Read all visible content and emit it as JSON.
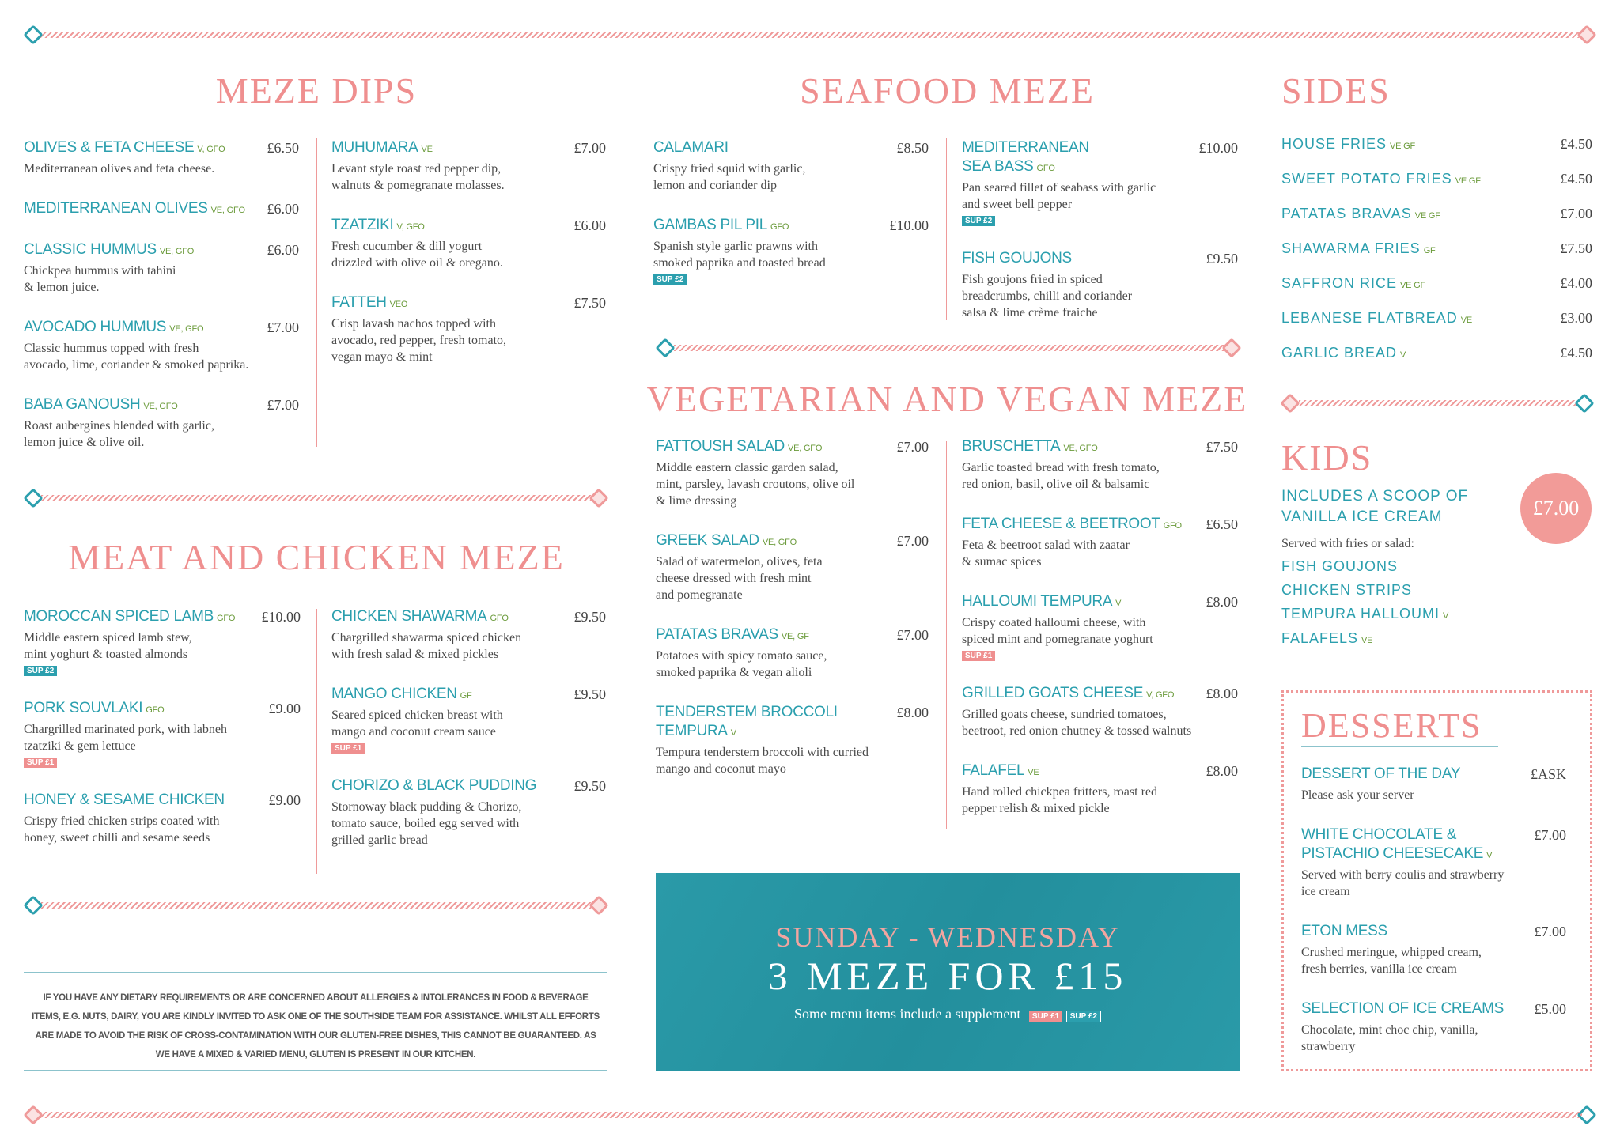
{
  "colors": {
    "teal": "#2b9fae",
    "pink": "#ef8f8f",
    "tag_green": "#6a9a3a",
    "promo_bg": "#2a9aa8"
  },
  "meze_dips": {
    "title": "MEZE DIPS",
    "left": [
      {
        "name": "OLIVES & FETA CHEESE",
        "tags": "V, GFO",
        "price": "£6.50",
        "desc": "Mediterranean olives and feta cheese."
      },
      {
        "name": "MEDITERRANEAN OLIVES",
        "tags": "VE, GFO",
        "price": "£6.00",
        "desc": ""
      },
      {
        "name": "CLASSIC HUMMUS",
        "tags": "VE, GFO",
        "price": "£6.00",
        "desc": "Chickpea hummus with tahini\n& lemon juice."
      },
      {
        "name": "AVOCADO HUMMUS",
        "tags": "VE, GFO",
        "price": "£7.00",
        "desc": "Classic hummus topped with fresh\navocado, lime, coriander & smoked paprika."
      },
      {
        "name": "BABA GANOUSH",
        "tags": "VE, GFO",
        "price": "£7.00",
        "desc": "Roast aubergines blended with garlic,\nlemon juice & olive oil."
      }
    ],
    "right": [
      {
        "name": "MUHUMARA",
        "tags": "VE",
        "price": "£7.00",
        "desc": "Levant style roast red pepper dip,\nwalnuts & pomegranate molasses."
      },
      {
        "name": "TZATZIKI",
        "tags": "V, GFO",
        "price": "£6.00",
        "desc": "Fresh cucumber & dill yogurt\ndrizzled with olive oil & oregano."
      },
      {
        "name": "FATTEH",
        "tags": "VEO",
        "price": "£7.50",
        "desc": "Crisp lavash nachos topped with\navocado, red pepper, fresh tomato,\nvegan mayo & mint"
      }
    ]
  },
  "meat": {
    "title": "MEAT AND CHICKEN MEZE",
    "left": [
      {
        "name": "MOROCCAN SPICED LAMB",
        "tags": "GFO",
        "price": "£10.00",
        "desc": "Middle eastern spiced lamb stew,\nmint yoghurt & toasted almonds",
        "sup": "SUP £2"
      },
      {
        "name": "PORK SOUVLAKI",
        "tags": "GFO",
        "price": "£9.00",
        "desc": "Chargrilled marinated pork, with labneh\ntzatziki & gem lettuce",
        "sup": "SUP £1"
      },
      {
        "name": "HONEY & SESAME CHICKEN",
        "tags": "",
        "price": "£9.00",
        "desc": "Crispy fried chicken strips coated with\nhoney, sweet chilli and sesame seeds"
      }
    ],
    "right": [
      {
        "name": "CHICKEN SHAWARMA",
        "tags": "GFO",
        "price": "£9.50",
        "desc": "Chargrilled shawarma spiced chicken\nwith fresh salad & mixed pickles"
      },
      {
        "name": "MANGO CHICKEN",
        "tags": "GF",
        "price": "£9.50",
        "desc": "Seared spiced chicken breast with\nmango and coconut cream sauce",
        "sup": "SUP £1"
      },
      {
        "name": "CHORIZO & BLACK PUDDING",
        "tags": "",
        "price": "£9.50",
        "desc": "Stornoway black pudding & Chorizo,\ntomato sauce, boiled egg served with\ngrilled garlic bread"
      }
    ]
  },
  "allergen_note": "IF YOU HAVE ANY DIETARY REQUIREMENTS OR ARE CONCERNED ABOUT ALLERGIES & INTOLERANCES IN FOOD & BEVERAGE ITEMS, E.G. NUTS, DAIRY, YOU ARE KINDLY INVITED TO ASK ONE OF THE SOUTHSIDE TEAM FOR ASSISTANCE. WHILST ALL EFFORTS ARE MADE TO AVOID THE RISK OF CROSS-CONTAMINATION WITH OUR GLUTEN-FREE DISHES, THIS CANNOT BE GUARANTEED. AS WE HAVE A MIXED & VARIED MENU, GLUTEN IS PRESENT IN OUR KITCHEN.",
  "seafood": {
    "title": "SEAFOOD MEZE",
    "left": [
      {
        "name": "CALAMARI",
        "tags": "",
        "price": "£8.50",
        "desc": "Crispy fried squid with garlic,\nlemon and coriander dip"
      },
      {
        "name": "GAMBAS PIL PIL",
        "tags": "GFO",
        "price": "£10.00",
        "desc": "Spanish style garlic prawns with\nsmoked paprika and toasted bread",
        "sup": "SUP £2"
      }
    ],
    "right": [
      {
        "name": "MEDITERRANEAN\nSEA BASS",
        "tags": "GFO",
        "price": "£10.00",
        "desc": "Pan seared fillet of seabass with garlic\nand sweet bell pepper",
        "sup": "SUP £2"
      },
      {
        "name": "FISH GOUJONS",
        "tags": "",
        "price": "£9.50",
        "desc": "Fish goujons fried in spiced\nbreadcrumbs, chilli and coriander\nsalsa & lime crème fraiche"
      }
    ]
  },
  "veg": {
    "title": "VEGETARIAN AND VEGAN MEZE",
    "left": [
      {
        "name": "FATTOUSH SALAD",
        "tags": "VE, GFO",
        "price": "£7.00",
        "desc": "Middle eastern classic garden salad,\nmint, parsley, lavash croutons, olive oil\n& lime dressing"
      },
      {
        "name": "GREEK SALAD",
        "tags": "VE, GFO",
        "price": "£7.00",
        "desc": "Salad of watermelon, olives, feta\ncheese dressed with fresh mint\nand pomegranate"
      },
      {
        "name": "PATATAS BRAVAS",
        "tags": "VE, GF",
        "price": "£7.00",
        "desc": "Potatoes with spicy tomato sauce,\nsmoked paprika & vegan alioli"
      },
      {
        "name": "TENDERSTEM BROCCOLI\nTEMPURA",
        "tags": "V",
        "price": "£8.00",
        "desc": "Tempura tenderstem broccoli with curried\nmango and coconut mayo"
      }
    ],
    "right": [
      {
        "name": "BRUSCHETTA",
        "tags": "VE, GFO",
        "price": "£7.50",
        "desc": "Garlic toasted bread with fresh tomato,\nred onion, basil, olive oil & balsamic"
      },
      {
        "name": "FETA CHEESE & BEETROOT",
        "tags": "GFO",
        "price": "£6.50",
        "desc": "Feta & beetroot salad with zaatar\n& sumac spices"
      },
      {
        "name": "HALLOUMI TEMPURA",
        "tags": "V",
        "price": "£8.00",
        "desc": "Crispy coated halloumi cheese, with\nspiced mint and pomegranate yoghurt",
        "sup": "SUP £1"
      },
      {
        "name": "GRILLED GOATS CHEESE",
        "tags": "V, GFO",
        "price": "£8.00",
        "desc": "Grilled goats cheese, sundried tomatoes,\nbeetroot, red onion chutney & tossed walnuts"
      },
      {
        "name": "FALAFEL",
        "tags": "VE",
        "price": "£8.00",
        "desc": "Hand rolled chickpea fritters, roast red\npepper relish & mixed pickle"
      }
    ]
  },
  "promo": {
    "days": "SUNDAY - WEDNESDAY",
    "offer": "3 MEZE FOR £15",
    "note": "Some menu items include a supplement",
    "sup1": "SUP £1",
    "sup2": "SUP £2"
  },
  "sides": {
    "title": "SIDES",
    "items": [
      {
        "name": "HOUSE FRIES",
        "tags": "VE GF",
        "price": "£4.50"
      },
      {
        "name": "SWEET POTATO FRIES",
        "tags": "VE GF",
        "price": "£4.50"
      },
      {
        "name": "PATATAS BRAVAS",
        "tags": "VE GF",
        "price": "£7.00"
      },
      {
        "name": "SHAWARMA FRIES",
        "tags": "GF",
        "price": "£7.50"
      },
      {
        "name": "SAFFRON RICE",
        "tags": "VE GF",
        "price": "£4.00"
      },
      {
        "name": "LEBANESE FLATBREAD",
        "tags": "VE",
        "price": "£3.00"
      },
      {
        "name": "GARLIC BREAD",
        "tags": "V",
        "price": "£4.50"
      }
    ]
  },
  "kids": {
    "title": "KIDS",
    "includes": "INCLUDES A SCOOP OF\nVANILLA ICE CREAM",
    "price": "£7.00",
    "served": "Served with fries or salad:",
    "items": [
      {
        "name": "FISH GOUJONS",
        "tags": ""
      },
      {
        "name": "CHICKEN STRIPS",
        "tags": ""
      },
      {
        "name": "TEMPURA HALLOUMI",
        "tags": "V"
      },
      {
        "name": "FALAFELS",
        "tags": "VE"
      }
    ]
  },
  "desserts": {
    "title": "DESSERTS",
    "items": [
      {
        "name": "DESSERT OF THE DAY",
        "tags": "",
        "price": "£ASK",
        "desc": "Please ask your server"
      },
      {
        "name": "WHITE CHOCOLATE &\nPISTACHIO CHEESECAKE",
        "tags": "V",
        "price": "£7.00",
        "desc": "Served with berry coulis and strawberry\nice cream"
      },
      {
        "name": "ETON MESS",
        "tags": "",
        "price": "£7.00",
        "desc": "Crushed meringue, whipped cream,\nfresh berries, vanilla ice cream"
      },
      {
        "name": "SELECTION OF ICE CREAMS",
        "tags": "",
        "price": "£5.00",
        "desc": "Chocolate, mint choc chip, vanilla,\nstrawberry"
      }
    ]
  }
}
